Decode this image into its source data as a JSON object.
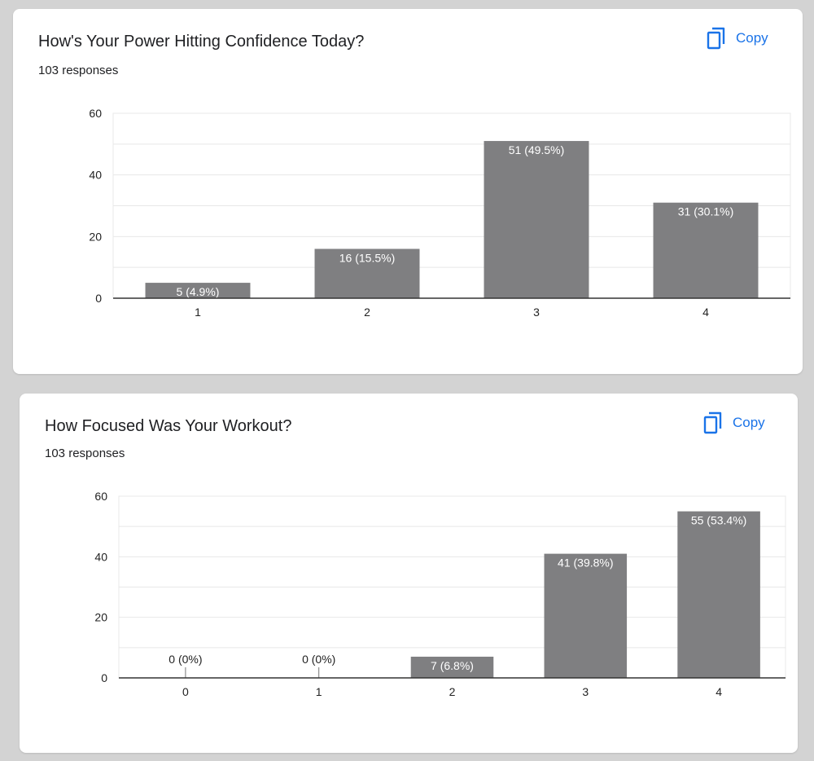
{
  "copy_icon": "copy-icon",
  "colors": {
    "accent": "#1a73e8",
    "bar": "#7f7f81",
    "grid": "#e8e8e8",
    "axis": "#333333"
  },
  "cards": [
    {
      "title": "How's Your Power Hitting Confidence Today?",
      "responses": "103 responses",
      "copy_label": "Copy",
      "chart_data": {
        "type": "bar",
        "categories": [
          "1",
          "2",
          "3",
          "4"
        ],
        "values": [
          5,
          16,
          51,
          31
        ],
        "data_labels": [
          "5 (4.9%)",
          "16 (15.5%)",
          "51 (49.5%)",
          "31 (30.1%)"
        ],
        "yticks": [
          "0",
          "20",
          "40",
          "60"
        ],
        "ylim": [
          0,
          60
        ],
        "title": "How's Your Power Hitting Confidence Today?",
        "xlabel": "",
        "ylabel": "",
        "grid": true
      }
    },
    {
      "title": "How Focused Was Your Workout?",
      "responses": "103 responses",
      "copy_label": "Copy",
      "chart_data": {
        "type": "bar",
        "categories": [
          "0",
          "1",
          "2",
          "3",
          "4"
        ],
        "values": [
          0,
          0,
          7,
          41,
          55
        ],
        "data_labels": [
          "0 (0%)",
          "0 (0%)",
          "7 (6.8%)",
          "41 (39.8%)",
          "55 (53.4%)"
        ],
        "yticks": [
          "0",
          "20",
          "40",
          "60"
        ],
        "ylim": [
          0,
          60
        ],
        "title": "How Focused Was Your Workout?",
        "xlabel": "",
        "ylabel": "",
        "grid": true
      }
    }
  ]
}
